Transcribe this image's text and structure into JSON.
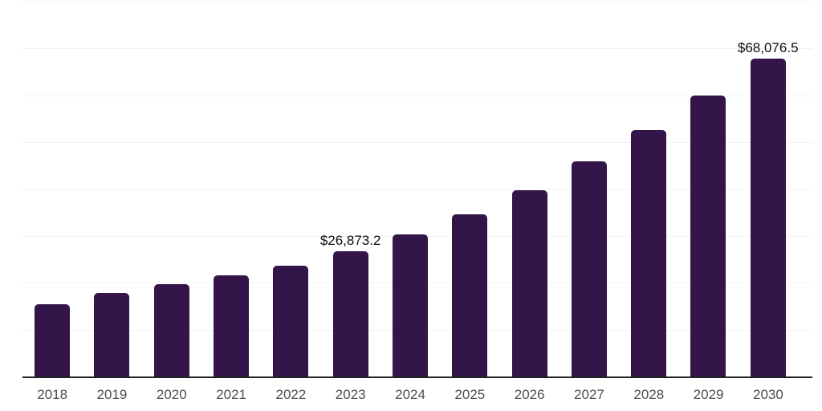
{
  "chart_data": {
    "type": "bar",
    "title": "",
    "xlabel": "",
    "ylabel": "",
    "categories": [
      "2018",
      "2019",
      "2020",
      "2021",
      "2022",
      "2023",
      "2024",
      "2025",
      "2026",
      "2027",
      "2028",
      "2029",
      "2030"
    ],
    "values": [
      15600,
      18000,
      19900,
      21750,
      23800,
      26873.2,
      30500,
      34800,
      39900,
      46100,
      52750,
      60100,
      68076.5
    ],
    "data_labels": [
      "",
      "",
      "",
      "",
      "",
      "$26,873.2",
      "",
      "",
      "",
      "",
      "",
      "",
      "$68,076.5"
    ],
    "ylim": [
      0,
      80000
    ],
    "gridline_interval": 10000,
    "grid": "horizontal-only",
    "legend": "none",
    "colors": {
      "bar": "#331549",
      "axis_line": "#222222",
      "gridline": "#f2f2f2",
      "tick_label": "#4d4d4d",
      "data_label": "#0d0d0d",
      "background": "#ffffff"
    }
  }
}
